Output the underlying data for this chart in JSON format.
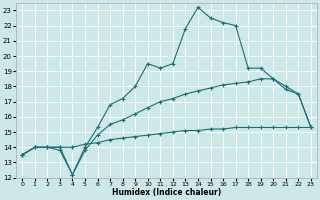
{
  "xlabel": "Humidex (Indice chaleur)",
  "bg_color": "#cce8e8",
  "line_color": "#1a7070",
  "xlim": [
    -0.5,
    23.5
  ],
  "ylim": [
    12,
    23.5
  ],
  "xticks": [
    0,
    1,
    2,
    3,
    4,
    5,
    6,
    7,
    8,
    9,
    10,
    11,
    12,
    13,
    14,
    15,
    16,
    17,
    18,
    19,
    20,
    21,
    22,
    23
  ],
  "yticks": [
    12,
    13,
    14,
    15,
    16,
    17,
    18,
    19,
    20,
    21,
    22,
    23
  ],
  "line_bottom": {
    "x": [
      0,
      1,
      2,
      3,
      4,
      5,
      6,
      7,
      8,
      9,
      10,
      11,
      12,
      13,
      14,
      15,
      16,
      17,
      18,
      19,
      20,
      21,
      22,
      23
    ],
    "y": [
      13.5,
      14.0,
      14.0,
      14.0,
      14.0,
      14.2,
      14.3,
      14.5,
      14.6,
      14.7,
      14.8,
      14.9,
      15.0,
      15.1,
      15.1,
      15.2,
      15.2,
      15.3,
      15.3,
      15.3,
      15.3,
      15.3,
      15.3,
      15.3
    ]
  },
  "line_middle": {
    "x": [
      0,
      1,
      2,
      3,
      4,
      5,
      6,
      7,
      8,
      9,
      10,
      11,
      12,
      13,
      14,
      15,
      16,
      17,
      18,
      19,
      20,
      21,
      22,
      23
    ],
    "y": [
      13.5,
      14.0,
      14.0,
      13.8,
      12.2,
      13.8,
      14.8,
      15.5,
      15.8,
      16.2,
      16.6,
      17.0,
      17.2,
      17.5,
      17.7,
      17.9,
      18.1,
      18.2,
      18.3,
      18.5,
      18.5,
      18.0,
      17.5,
      15.3
    ]
  },
  "line_upper": {
    "x": [
      0,
      1,
      2,
      3,
      4,
      5,
      6,
      7,
      8,
      9,
      10,
      11,
      12,
      13,
      14,
      15,
      16,
      17,
      18,
      19,
      20,
      21,
      22,
      23
    ],
    "y": [
      13.5,
      14.0,
      14.0,
      14.0,
      12.2,
      14.0,
      15.3,
      16.8,
      17.2,
      18.0,
      19.5,
      19.2,
      19.5,
      21.8,
      23.2,
      22.5,
      22.2,
      22.0,
      19.2,
      19.2,
      18.5,
      17.8,
      17.5,
      15.3
    ]
  }
}
